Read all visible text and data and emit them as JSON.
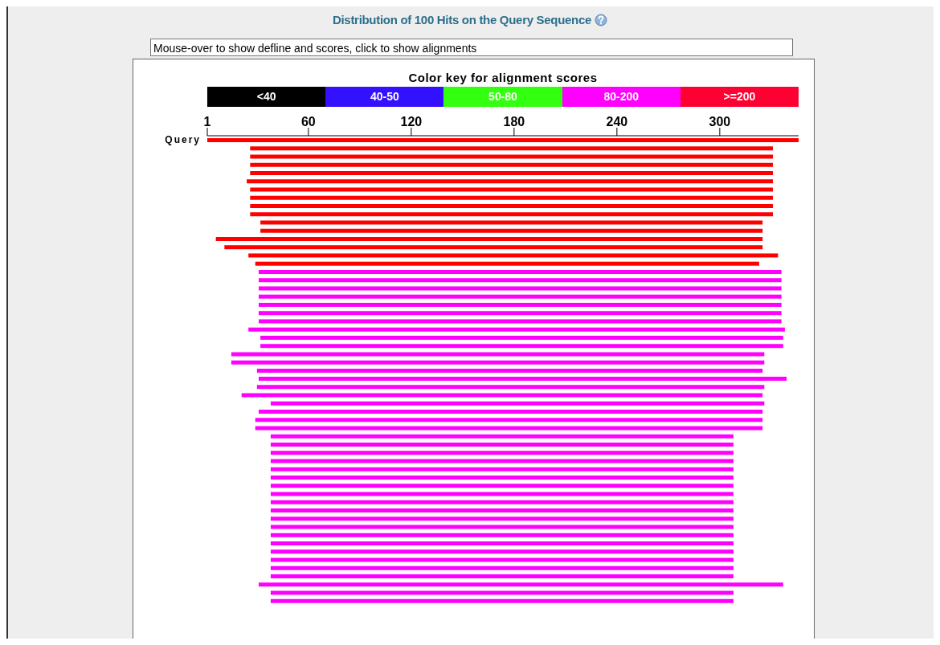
{
  "chart_data": {
    "type": "bar",
    "orientation": "horizontal",
    "title": "Distribution of 100 Hits on the Query Sequence",
    "annotations": [
      "Mouse-over to show defline and scores, click to show alignments",
      "Color key for alignment scores",
      "<40",
      "40-50",
      "50-80",
      "80-200",
      ">=200"
    ],
    "categories": [
      "Query",
      null,
      null,
      null,
      null,
      null,
      null,
      null,
      null,
      null,
      null,
      null,
      null,
      null,
      null,
      null,
      null,
      null,
      null,
      null,
      null,
      null,
      null,
      null,
      null,
      null,
      null,
      null,
      null,
      null,
      null,
      null,
      null,
      null,
      null,
      null,
      null,
      null,
      null,
      null,
      null,
      null,
      null,
      null,
      null,
      null,
      null,
      null,
      null,
      null,
      null,
      null,
      null,
      null,
      null,
      null,
      null
    ],
    "base": [
      1,
      26,
      26,
      26,
      26,
      24,
      26,
      26,
      26,
      26,
      32,
      32,
      6,
      11,
      25,
      29,
      31,
      31,
      31,
      31,
      31,
      31,
      31,
      25,
      32,
      32,
      15,
      15,
      30,
      31,
      30,
      21,
      38,
      31,
      29,
      29,
      38,
      38,
      38,
      38,
      38,
      38,
      38,
      38,
      38,
      38,
      38,
      38,
      38,
      38,
      38,
      38,
      38,
      38,
      31,
      38,
      38
    ],
    "values": [
      345,
      305,
      305,
      305,
      305,
      307,
      305,
      305,
      305,
      305,
      293,
      293,
      319,
      314,
      309,
      294,
      305,
      305,
      305,
      305,
      305,
      305,
      305,
      313,
      305,
      305,
      311,
      311,
      295,
      308,
      296,
      304,
      288,
      294,
      296,
      296,
      270,
      270,
      270,
      270,
      270,
      270,
      270,
      270,
      270,
      270,
      270,
      270,
      270,
      270,
      270,
      270,
      270,
      270,
      306,
      270,
      270
    ],
    "colors": [
      "#ff0000",
      "#ff0000",
      "#ff0000",
      "#ff0000",
      "#ff0000",
      "#ff0000",
      "#ff0000",
      "#ff0000",
      "#ff0000",
      "#ff0000",
      "#ff0000",
      "#ff0000",
      "#ff0000",
      "#ff0000",
      "#ff0000",
      "#ff0000",
      "#ff00ff",
      "#ff00ff",
      "#ff00ff",
      "#ff00ff",
      "#ff00ff",
      "#ff00ff",
      "#ff00ff",
      "#ff00ff",
      "#ff00ff",
      "#ff00ff",
      "#ff00ff",
      "#ff00ff",
      "#ff00ff",
      "#ff00ff",
      "#ff00ff",
      "#ff00ff",
      "#ff00ff",
      "#ff00ff",
      "#ff00ff",
      "#ff00ff",
      "#ff00ff",
      "#ff00ff",
      "#ff00ff",
      "#ff00ff",
      "#ff00ff",
      "#ff00ff",
      "#ff00ff",
      "#ff00ff",
      "#ff00ff",
      "#ff00ff",
      "#ff00ff",
      "#ff00ff",
      "#ff00ff",
      "#ff00ff",
      "#ff00ff",
      "#ff00ff",
      "#ff00ff",
      "#ff00ff",
      "#ff00ff",
      "#ff00ff",
      "#ff00ff"
    ],
    "xlim": [
      1,
      346
    ],
    "xticks": [
      1,
      60,
      120,
      180,
      240,
      300
    ]
  }
}
